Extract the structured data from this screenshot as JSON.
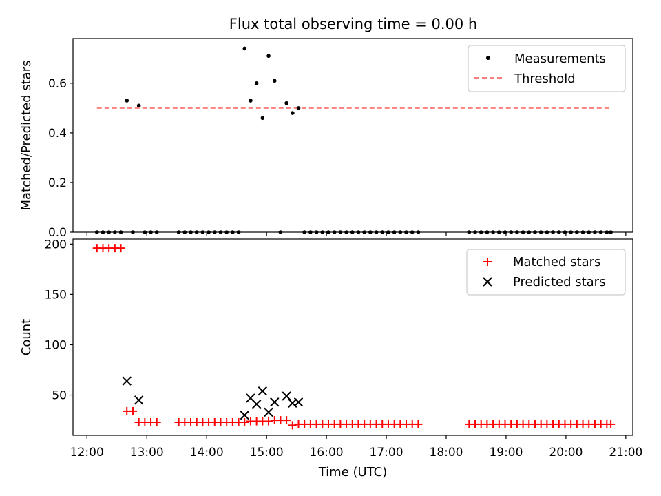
{
  "figure": {
    "title": "Flux total observing time = 0.00 h"
  },
  "chart_data": [
    {
      "type": "scatter",
      "title": "Flux total observing time = 0.00 h",
      "xlabel": "",
      "ylabel": "Matched/Predicted stars",
      "xlim": [
        "11:46",
        "21:07"
      ],
      "ylim": [
        0,
        0.78
      ],
      "yticks": [
        0.0,
        0.2,
        0.4,
        0.6
      ],
      "ytick_labels": [
        "0.0",
        "0.2",
        "0.4",
        "0.6"
      ],
      "grid": false,
      "legend_position": "top-right",
      "threshold": {
        "name": "Threshold",
        "value": 0.5,
        "x_start": "12:10",
        "x_end": "20:45",
        "color": "#ff7f7f"
      },
      "series": [
        {
          "name": "Measurements",
          "marker": "dot",
          "color": "#000000",
          "points": [
            [
              "12:10",
              0
            ],
            [
              "12:16",
              0
            ],
            [
              "12:22",
              0
            ],
            [
              "12:28",
              0
            ],
            [
              "12:34",
              0
            ],
            [
              "12:40",
              0.53
            ],
            [
              "12:46",
              0
            ],
            [
              "12:52",
              0.51
            ],
            [
              "12:58",
              0
            ],
            [
              "13:04",
              0
            ],
            [
              "13:10",
              0
            ],
            [
              "13:32",
              0
            ],
            [
              "13:38",
              0
            ],
            [
              "13:44",
              0
            ],
            [
              "13:50",
              0
            ],
            [
              "13:56",
              0
            ],
            [
              "14:02",
              0
            ],
            [
              "14:08",
              0
            ],
            [
              "14:14",
              0
            ],
            [
              "14:20",
              0
            ],
            [
              "14:26",
              0
            ],
            [
              "14:32",
              0
            ],
            [
              "14:38",
              0.74
            ],
            [
              "14:44",
              0.53
            ],
            [
              "14:50",
              0.6
            ],
            [
              "14:56",
              0.46
            ],
            [
              "15:02",
              0.71
            ],
            [
              "15:08",
              0.61
            ],
            [
              "15:14",
              0
            ],
            [
              "15:20",
              0.52
            ],
            [
              "15:26",
              0.48
            ],
            [
              "15:32",
              0.5
            ],
            [
              "15:38",
              0
            ],
            [
              "15:44",
              0
            ],
            [
              "15:50",
              0
            ],
            [
              "15:56",
              0
            ],
            [
              "16:02",
              0
            ],
            [
              "16:08",
              0
            ],
            [
              "16:14",
              0
            ],
            [
              "16:20",
              0
            ],
            [
              "16:26",
              0
            ],
            [
              "16:32",
              0
            ],
            [
              "16:38",
              0
            ],
            [
              "16:44",
              0
            ],
            [
              "16:50",
              0
            ],
            [
              "16:56",
              0
            ],
            [
              "17:02",
              0
            ],
            [
              "17:08",
              0
            ],
            [
              "17:14",
              0
            ],
            [
              "17:20",
              0
            ],
            [
              "17:26",
              0
            ],
            [
              "17:32",
              0
            ],
            [
              "18:23",
              0
            ],
            [
              "18:29",
              0
            ],
            [
              "18:35",
              0
            ],
            [
              "18:41",
              0
            ],
            [
              "18:47",
              0
            ],
            [
              "18:53",
              0
            ],
            [
              "18:59",
              0
            ],
            [
              "19:05",
              0
            ],
            [
              "19:11",
              0
            ],
            [
              "19:17",
              0
            ],
            [
              "19:23",
              0
            ],
            [
              "19:29",
              0
            ],
            [
              "19:35",
              0
            ],
            [
              "19:41",
              0
            ],
            [
              "19:47",
              0
            ],
            [
              "19:53",
              0
            ],
            [
              "19:59",
              0
            ],
            [
              "20:05",
              0
            ],
            [
              "20:11",
              0
            ],
            [
              "20:17",
              0
            ],
            [
              "20:23",
              0
            ],
            [
              "20:29",
              0
            ],
            [
              "20:35",
              0
            ],
            [
              "20:41",
              0
            ],
            [
              "20:45",
              0
            ]
          ]
        }
      ]
    },
    {
      "type": "scatter",
      "title": "",
      "xlabel": "Time (UTC)",
      "ylabel": "Count",
      "xlim": [
        "11:46",
        "21:07"
      ],
      "ylim": [
        10,
        205
      ],
      "yticks": [
        50,
        100,
        150,
        200
      ],
      "ytick_labels": [
        "50",
        "100",
        "150",
        "200"
      ],
      "xticks": [
        "12:00",
        "13:00",
        "14:00",
        "15:00",
        "16:00",
        "17:00",
        "18:00",
        "19:00",
        "20:00",
        "21:00"
      ],
      "xtick_labels": [
        "12:00",
        "13:00",
        "14:00",
        "15:00",
        "16:00",
        "17:00",
        "18:00",
        "19:00",
        "20:00",
        "21:00"
      ],
      "grid": false,
      "legend_position": "top-right",
      "series": [
        {
          "name": "Matched stars",
          "marker": "plus",
          "color": "#ff0000",
          "points": [
            [
              "12:10",
              196
            ],
            [
              "12:16",
              196
            ],
            [
              "12:22",
              196
            ],
            [
              "12:28",
              196
            ],
            [
              "12:34",
              196
            ],
            [
              "12:40",
              34
            ],
            [
              "12:46",
              34
            ],
            [
              "12:52",
              23
            ],
            [
              "12:58",
              23
            ],
            [
              "13:04",
              23
            ],
            [
              "13:10",
              23
            ],
            [
              "13:32",
              23
            ],
            [
              "13:38",
              23
            ],
            [
              "13:44",
              23
            ],
            [
              "13:50",
              23
            ],
            [
              "13:56",
              23
            ],
            [
              "14:02",
              23
            ],
            [
              "14:08",
              23
            ],
            [
              "14:14",
              23
            ],
            [
              "14:20",
              23
            ],
            [
              "14:26",
              23
            ],
            [
              "14:32",
              23
            ],
            [
              "14:38",
              23
            ],
            [
              "14:44",
              24
            ],
            [
              "14:50",
              24
            ],
            [
              "14:56",
              24
            ],
            [
              "15:02",
              24
            ],
            [
              "15:08",
              25
            ],
            [
              "15:14",
              25
            ],
            [
              "15:20",
              25
            ],
            [
              "15:26",
              20
            ],
            [
              "15:32",
              21
            ],
            [
              "15:38",
              21
            ],
            [
              "15:44",
              21
            ],
            [
              "15:50",
              21
            ],
            [
              "15:56",
              21
            ],
            [
              "16:02",
              21
            ],
            [
              "16:08",
              21
            ],
            [
              "16:14",
              21
            ],
            [
              "16:20",
              21
            ],
            [
              "16:26",
              21
            ],
            [
              "16:32",
              21
            ],
            [
              "16:38",
              21
            ],
            [
              "16:44",
              21
            ],
            [
              "16:50",
              21
            ],
            [
              "16:56",
              21
            ],
            [
              "17:02",
              21
            ],
            [
              "17:08",
              21
            ],
            [
              "17:14",
              21
            ],
            [
              "17:20",
              21
            ],
            [
              "17:26",
              21
            ],
            [
              "17:32",
              21
            ],
            [
              "18:23",
              21
            ],
            [
              "18:29",
              21
            ],
            [
              "18:35",
              21
            ],
            [
              "18:41",
              21
            ],
            [
              "18:47",
              21
            ],
            [
              "18:53",
              21
            ],
            [
              "18:59",
              21
            ],
            [
              "19:05",
              21
            ],
            [
              "19:11",
              21
            ],
            [
              "19:17",
              21
            ],
            [
              "19:23",
              21
            ],
            [
              "19:29",
              21
            ],
            [
              "19:35",
              21
            ],
            [
              "19:41",
              21
            ],
            [
              "19:47",
              21
            ],
            [
              "19:53",
              21
            ],
            [
              "19:59",
              21
            ],
            [
              "20:05",
              21
            ],
            [
              "20:11",
              21
            ],
            [
              "20:17",
              21
            ],
            [
              "20:23",
              21
            ],
            [
              "20:29",
              21
            ],
            [
              "20:35",
              21
            ],
            [
              "20:41",
              21
            ],
            [
              "20:45",
              21
            ]
          ]
        },
        {
          "name": "Predicted stars",
          "marker": "x",
          "color": "#000000",
          "points": [
            [
              "12:40",
              64
            ],
            [
              "12:52",
              45
            ],
            [
              "14:38",
              30
            ],
            [
              "14:44",
              47
            ],
            [
              "14:50",
              41
            ],
            [
              "14:56",
              54
            ],
            [
              "15:02",
              33
            ],
            [
              "15:08",
              43
            ],
            [
              "15:20",
              49
            ],
            [
              "15:26",
              42
            ],
            [
              "15:32",
              43
            ]
          ]
        }
      ]
    }
  ]
}
